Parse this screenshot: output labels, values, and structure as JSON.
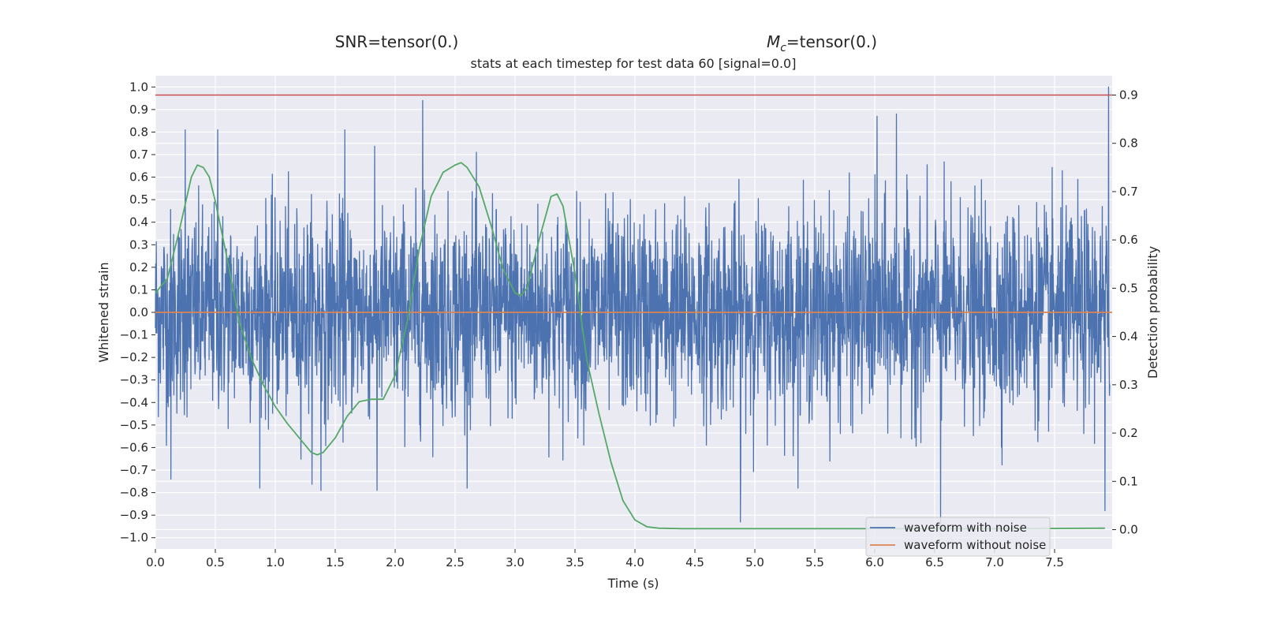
{
  "header": {
    "left_title": "SNR=tensor(0.)",
    "right_title_symbol": "M",
    "right_title_subscript": "c",
    "right_title_rest": "=tensor(0.)"
  },
  "chart_data": {
    "type": "line",
    "title": "stats at each timestep for test data 60 [signal=0.0]",
    "xlabel": "Time (s)",
    "ylabel": "Whitened strain",
    "y2label": "Detection probability",
    "xlim": [
      0.0,
      7.98
    ],
    "ylim": [
      -1.05,
      1.05
    ],
    "y2lim": [
      -0.04,
      0.94
    ],
    "xticks": [
      "0.0",
      "0.5",
      "1.0",
      "1.5",
      "2.0",
      "2.5",
      "3.0",
      "3.5",
      "4.0",
      "4.5",
      "5.0",
      "5.5",
      "6.0",
      "6.5",
      "7.0",
      "7.5"
    ],
    "yticks": [
      "1.0",
      "0.9",
      "0.8",
      "0.7",
      "0.6",
      "0.5",
      "0.4",
      "0.3",
      "0.2",
      "0.1",
      "0.0",
      "−0.1",
      "−0.2",
      "−0.3",
      "−0.4",
      "−0.5",
      "−0.6",
      "−0.7",
      "−0.8",
      "−0.9",
      "−1.0"
    ],
    "y2ticks": [
      "0.9",
      "0.8",
      "0.7",
      "0.6",
      "0.5",
      "0.4",
      "0.3",
      "0.2",
      "0.1",
      "0.0"
    ],
    "grid": true,
    "legend_position": "lower-right",
    "background": "#eaeaf2",
    "series": [
      {
        "name": "waveform with noise",
        "color": "#4c72b0",
        "axis": "left",
        "typical_amplitude": 0.45,
        "notable_peaks": [
          {
            "x": 0.25,
            "y": 0.81
          },
          {
            "x": 0.52,
            "y": 0.81
          },
          {
            "x": 1.58,
            "y": 0.81
          },
          {
            "x": 2.23,
            "y": 0.94
          },
          {
            "x": 6.02,
            "y": 0.87
          },
          {
            "x": 6.18,
            "y": 0.88
          },
          {
            "x": 7.95,
            "y": 1.0
          },
          {
            "x": 0.13,
            "y": -0.74
          },
          {
            "x": 1.38,
            "y": -0.79
          },
          {
            "x": 1.85,
            "y": -0.79
          },
          {
            "x": 4.88,
            "y": -0.93
          },
          {
            "x": 6.55,
            "y": -0.94
          },
          {
            "x": 7.92,
            "y": -0.88
          }
        ]
      },
      {
        "name": "waveform without noise",
        "color": "#dd8452",
        "axis": "left",
        "x": [
          0.0,
          7.98
        ],
        "y": [
          0.0,
          0.0
        ]
      },
      {
        "color": "#55a868",
        "axis": "right",
        "x": [
          0.0,
          0.1,
          0.2,
          0.3,
          0.35,
          0.4,
          0.45,
          0.5,
          0.6,
          0.7,
          0.8,
          0.9,
          1.0,
          1.1,
          1.2,
          1.3,
          1.35,
          1.4,
          1.5,
          1.6,
          1.7,
          1.8,
          1.9,
          2.0,
          2.1,
          2.2,
          2.3,
          2.4,
          2.5,
          2.55,
          2.6,
          2.7,
          2.8,
          2.9,
          3.0,
          3.05,
          3.1,
          3.2,
          3.3,
          3.35,
          3.4,
          3.5,
          3.6,
          3.7,
          3.8,
          3.9,
          4.0,
          4.1,
          4.2,
          4.4,
          5.0,
          6.0,
          7.0,
          7.92
        ],
        "y": [
          0.49,
          0.52,
          0.62,
          0.73,
          0.755,
          0.75,
          0.73,
          0.68,
          0.56,
          0.43,
          0.355,
          0.3,
          0.255,
          0.22,
          0.19,
          0.16,
          0.155,
          0.16,
          0.19,
          0.235,
          0.265,
          0.27,
          0.27,
          0.32,
          0.43,
          0.58,
          0.69,
          0.74,
          0.755,
          0.76,
          0.75,
          0.71,
          0.63,
          0.54,
          0.49,
          0.485,
          0.5,
          0.6,
          0.69,
          0.695,
          0.67,
          0.53,
          0.35,
          0.24,
          0.14,
          0.06,
          0.02,
          0.006,
          0.003,
          0.002,
          0.002,
          0.002,
          0.002,
          0.003
        ]
      },
      {
        "color": "#c44e52",
        "axis": "right",
        "x": [
          0.0,
          7.98
        ],
        "y": [
          0.9,
          0.9
        ]
      }
    ]
  }
}
